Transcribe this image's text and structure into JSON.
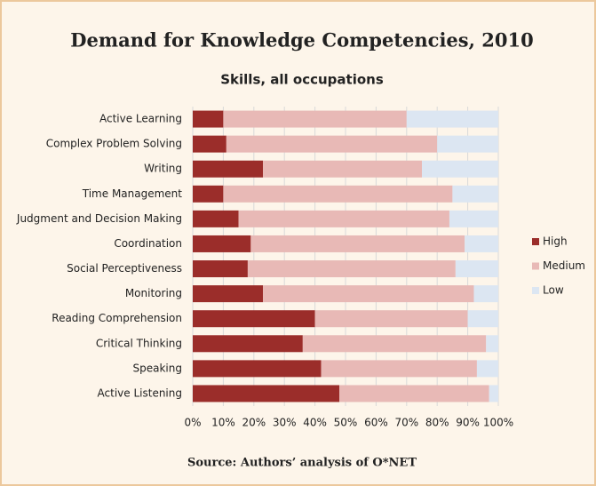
{
  "chart_data": {
    "type": "stacked-barh",
    "title": "Demand for Knowledge Competencies, 2010",
    "subtitle": "Skills, all occupations",
    "source": "Source: Authors’ analysis of O*NET",
    "categories": [
      "Active Learning",
      "Complex Problem Solving",
      "Writing",
      "Time Management",
      "Judgment and Decision Making",
      "Coordination",
      "Social Perceptiveness",
      "Monitoring",
      "Reading Comprehension",
      "Critical Thinking",
      "Speaking",
      "Active Listening"
    ],
    "series": [
      {
        "name": "High",
        "color": "#9b2d2a",
        "values": [
          10,
          11,
          23,
          10,
          15,
          19,
          18,
          23,
          40,
          36,
          42,
          48
        ]
      },
      {
        "name": "Medium",
        "color": "#e8b9b6",
        "values": [
          60,
          69,
          52,
          75,
          69,
          70,
          68,
          69,
          50,
          60,
          51,
          49
        ]
      },
      {
        "name": "Low",
        "color": "#dce6f2",
        "values": [
          30,
          20,
          25,
          15,
          16,
          11,
          14,
          8,
          10,
          4,
          7,
          3
        ]
      }
    ],
    "xlim": [
      0,
      100
    ],
    "xticks": [
      {
        "value": 0,
        "label": "0%"
      },
      {
        "value": 10,
        "label": "10%"
      },
      {
        "value": 20,
        "label": "20%"
      },
      {
        "value": 30,
        "label": "30%"
      },
      {
        "value": 40,
        "label": "40%"
      },
      {
        "value": 50,
        "label": "50%"
      },
      {
        "value": 60,
        "label": "60%"
      },
      {
        "value": 70,
        "label": "70%"
      },
      {
        "value": 80,
        "label": "80%"
      },
      {
        "value": 90,
        "label": "90%"
      },
      {
        "value": 100,
        "label": "100%"
      }
    ],
    "grid": true,
    "legend": "right"
  }
}
